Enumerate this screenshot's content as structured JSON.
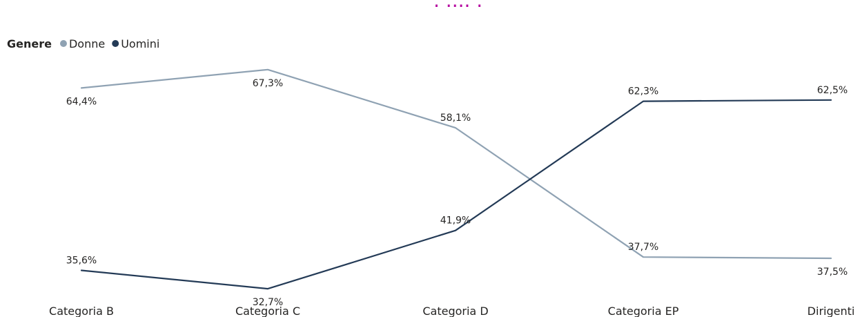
{
  "chart_data": {
    "type": "line",
    "categories": [
      "Categoria B",
      "Categoria C",
      "Categoria D",
      "Categoria EP",
      "Dirigenti"
    ],
    "legend": {
      "title": "Genere",
      "placement": "top-left"
    },
    "series": [
      {
        "name": "Donne",
        "color": "#8fa2b3",
        "values": [
          64.4,
          67.3,
          58.1,
          37.7,
          37.5
        ],
        "labels": [
          "64,4%",
          "67,3%",
          "58,1%",
          "37,7%",
          "37,5%"
        ]
      },
      {
        "name": "Uomini",
        "color": "#233a56",
        "values": [
          35.6,
          32.7,
          41.9,
          62.3,
          62.5
        ],
        "labels": [
          "35,6%",
          "32,7%",
          "41,9%",
          "62,3%",
          "62,5%"
        ]
      }
    ],
    "ylim": [
      29,
      70
    ],
    "grid": false
  }
}
